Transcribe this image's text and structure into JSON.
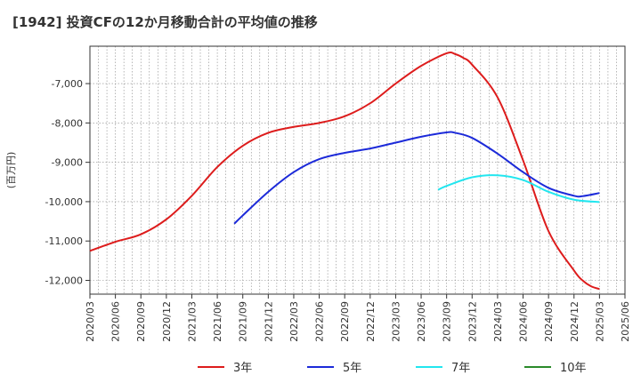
{
  "chart_data": {
    "type": "line",
    "title": "[1942]  投資CFの12か月移動合計の平均値の推移",
    "ylabel": "(百万円)",
    "xlabel": "",
    "ylim": [
      -12350,
      -6050
    ],
    "yticks": [
      -12000,
      -11000,
      -10000,
      -9000,
      -8000,
      -7000
    ],
    "ytick_labels": [
      "-12,000",
      "-11,000",
      "-10,000",
      "-9,000",
      "-8,000",
      "-7,000"
    ],
    "xticks": [
      "2020/03",
      "2020/06",
      "2020/09",
      "2020/12",
      "2021/03",
      "2021/06",
      "2021/09",
      "2021/12",
      "2022/03",
      "2022/06",
      "2022/09",
      "2022/12",
      "2023/03",
      "2023/06",
      "2023/09",
      "2023/12",
      "2024/03",
      "2024/06",
      "2024/09",
      "2024/12",
      "2025/03",
      "2025/06"
    ],
    "grid": true,
    "legend_position": "bottom",
    "series": [
      {
        "name": "3年",
        "color": "#dd1c1c",
        "points": [
          [
            "2020/03",
            -11250
          ],
          [
            "2020/06",
            -11020
          ],
          [
            "2020/09",
            -10830
          ],
          [
            "2020/12",
            -10450
          ],
          [
            "2021/03",
            -9850
          ],
          [
            "2021/06",
            -9120
          ],
          [
            "2021/09",
            -8580
          ],
          [
            "2021/12",
            -8250
          ],
          [
            "2022/03",
            -8100
          ],
          [
            "2022/06",
            -8000
          ],
          [
            "2022/09",
            -7830
          ],
          [
            "2022/12",
            -7500
          ],
          [
            "2023/03",
            -7000
          ],
          [
            "2023/06",
            -6550
          ],
          [
            "2023/09",
            -6230
          ],
          [
            "2023/10",
            -6250
          ],
          [
            "2023/11",
            -6350
          ],
          [
            "2023/12",
            -6520
          ],
          [
            "2024/03",
            -7350
          ],
          [
            "2024/06",
            -8950
          ],
          [
            "2024/09",
            -10750
          ],
          [
            "2024/12",
            -11750
          ],
          [
            "2025/01",
            -12000
          ],
          [
            "2025/02",
            -12150
          ],
          [
            "2025/03",
            -12220
          ]
        ]
      },
      {
        "name": "5年",
        "color": "#1c2ad9",
        "points": [
          [
            "2021/08",
            -10560
          ],
          [
            "2021/09",
            -10350
          ],
          [
            "2021/12",
            -9750
          ],
          [
            "2022/03",
            -9250
          ],
          [
            "2022/06",
            -8920
          ],
          [
            "2022/09",
            -8760
          ],
          [
            "2022/12",
            -8650
          ],
          [
            "2023/03",
            -8500
          ],
          [
            "2023/06",
            -8350
          ],
          [
            "2023/09",
            -8240
          ],
          [
            "2023/10",
            -8250
          ],
          [
            "2023/12",
            -8380
          ],
          [
            "2024/03",
            -8780
          ],
          [
            "2024/06",
            -9250
          ],
          [
            "2024/09",
            -9650
          ],
          [
            "2024/12",
            -9850
          ],
          [
            "2025/01",
            -9860
          ],
          [
            "2025/03",
            -9780
          ]
        ]
      },
      {
        "name": "7年",
        "color": "#22e6ef",
        "points": [
          [
            "2023/08",
            -9700
          ],
          [
            "2023/09",
            -9600
          ],
          [
            "2023/12",
            -9380
          ],
          [
            "2024/03",
            -9330
          ],
          [
            "2024/06",
            -9450
          ],
          [
            "2024/09",
            -9750
          ],
          [
            "2024/12",
            -9950
          ],
          [
            "2025/03",
            -10010
          ]
        ]
      },
      {
        "name": "10年",
        "color": "#2a8a2a",
        "points": []
      }
    ]
  }
}
